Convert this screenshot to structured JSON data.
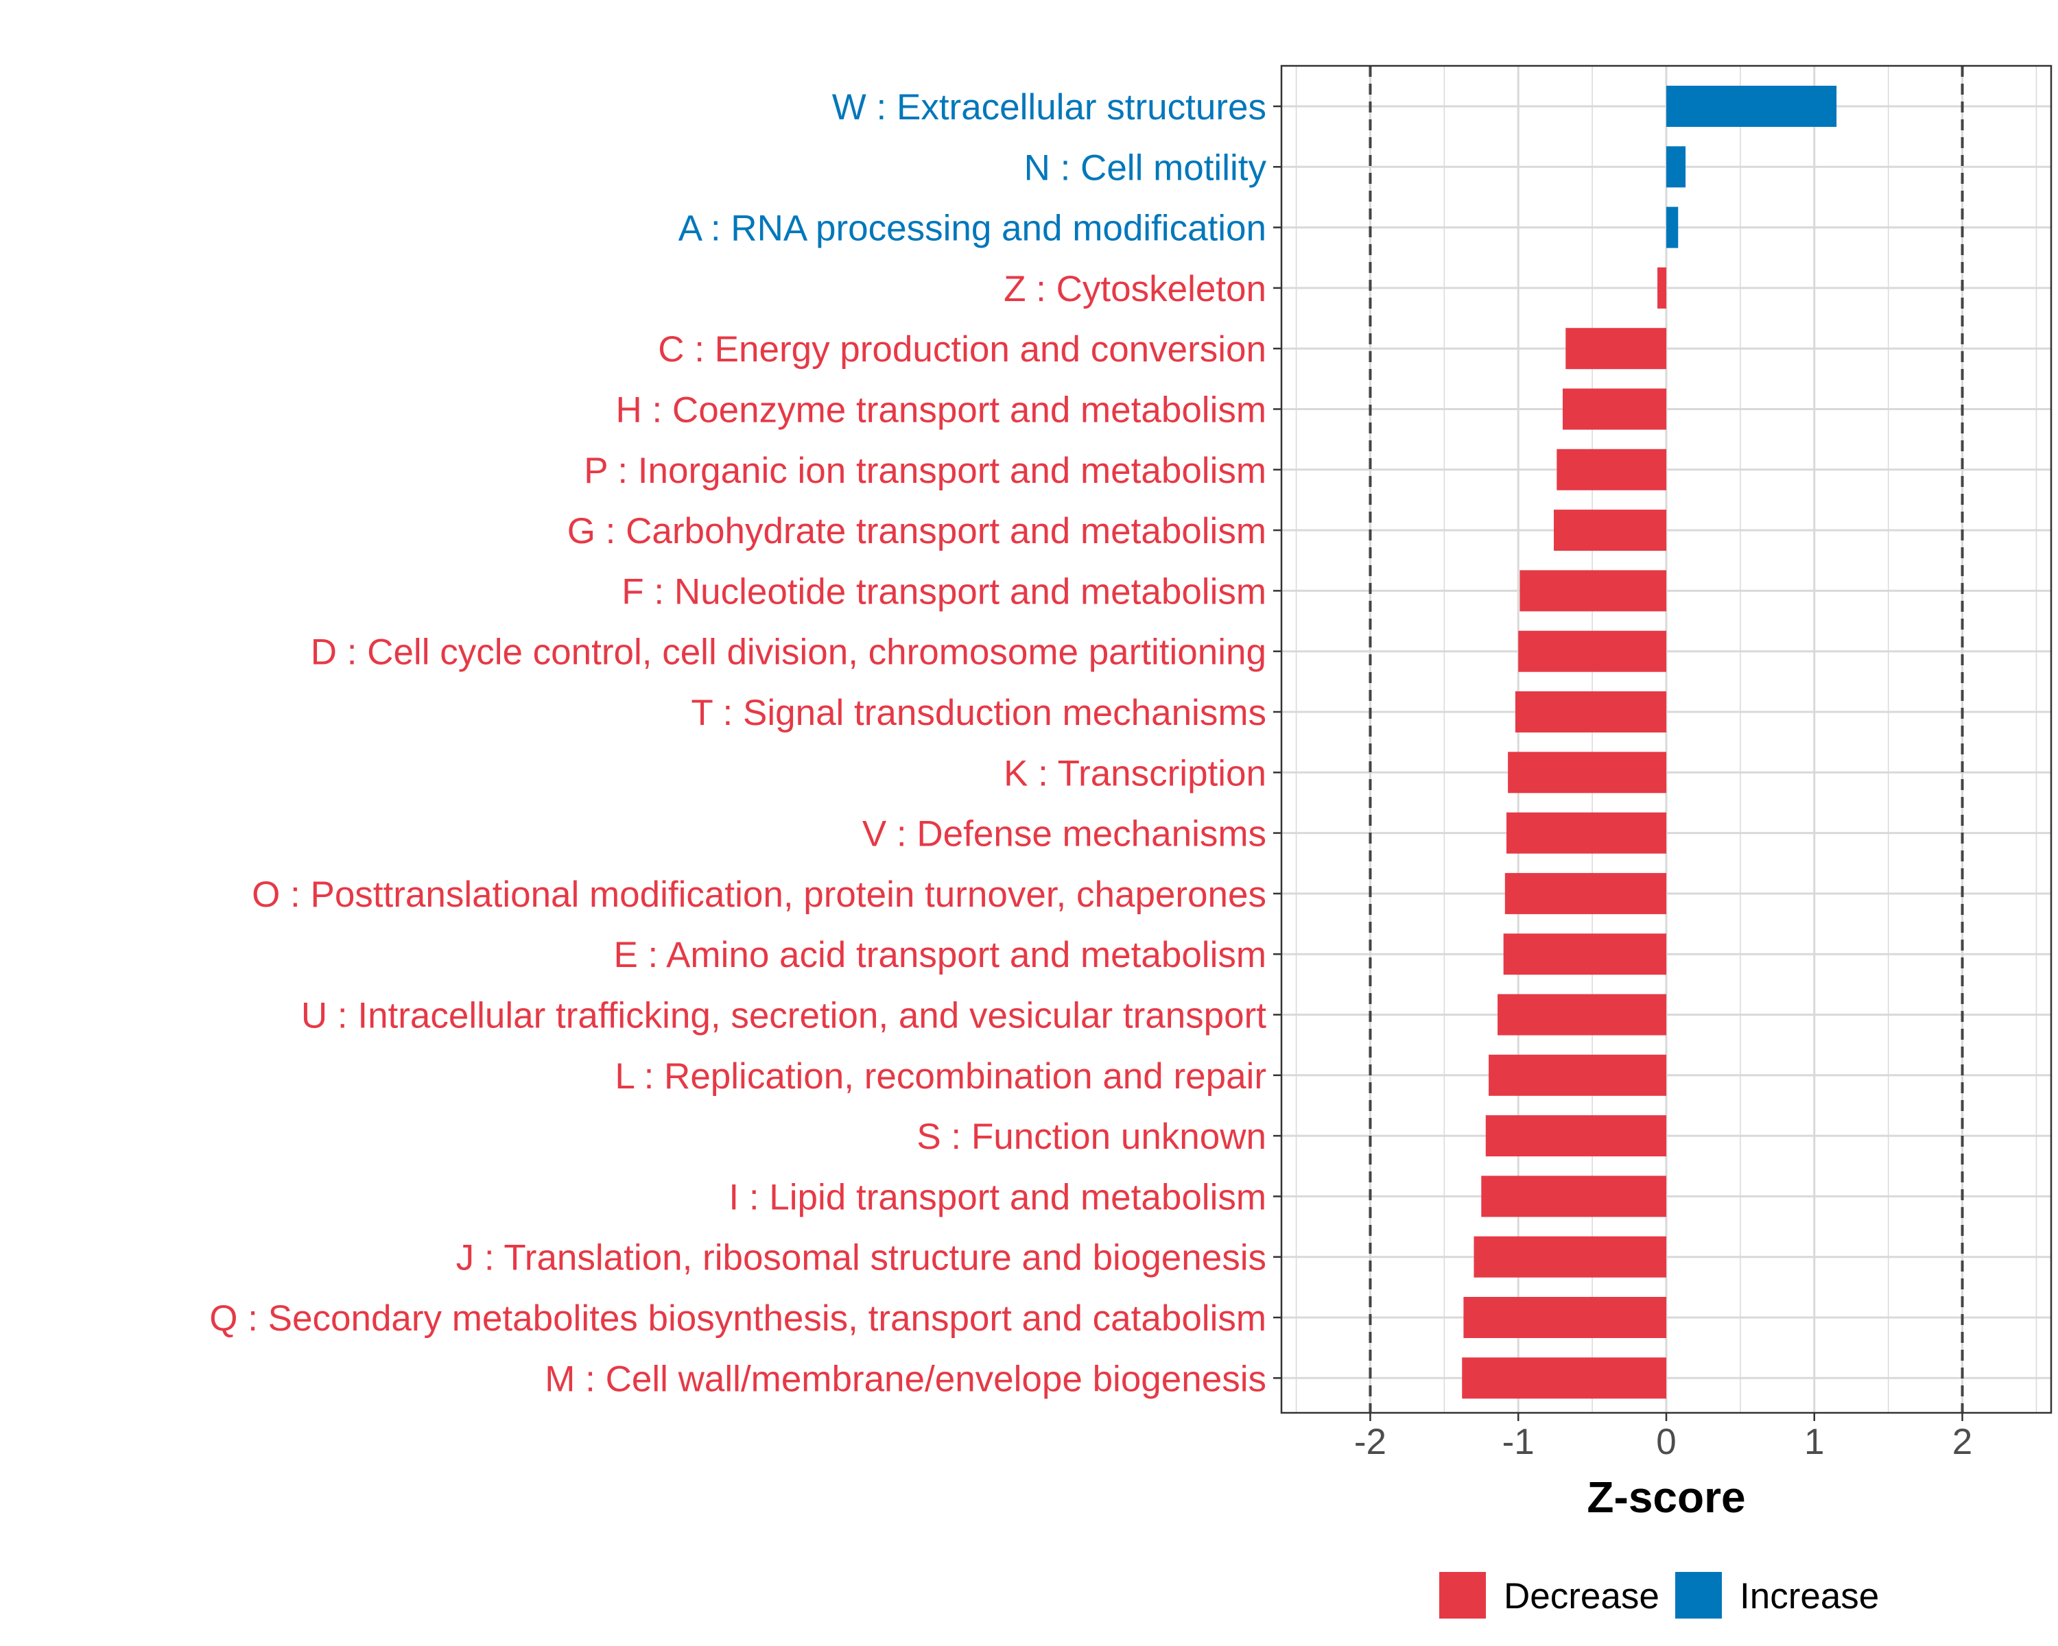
{
  "colors": {
    "decrease": "#e63946",
    "increase": "#0077bb",
    "grid": "#d9d9d9",
    "reference_line": "#444444",
    "panel_border": "#333333"
  },
  "chart_data": {
    "type": "bar",
    "orientation": "horizontal",
    "xlabel": "Z-score",
    "xlim": [
      -2.6,
      2.6
    ],
    "x_ticks": [
      -2,
      -1,
      0,
      1,
      2
    ],
    "x_tick_labels": [
      "-2",
      "-1",
      "0",
      "1",
      "2"
    ],
    "reference_lines": [
      -2,
      2
    ],
    "grid": true,
    "legend_position": "bottom",
    "legend": [
      {
        "label": "Decrease",
        "color_key": "decrease"
      },
      {
        "label": "Increase",
        "color_key": "increase"
      }
    ],
    "categories": [
      "W : Extracellular structures",
      "N : Cell motility",
      "A : RNA processing and modification",
      "Z : Cytoskeleton",
      "C : Energy production and conversion",
      "H : Coenzyme transport and metabolism",
      "P : Inorganic ion transport and metabolism",
      "G : Carbohydrate transport and metabolism",
      "F : Nucleotide transport and metabolism",
      "D : Cell cycle control, cell division, chromosome partitioning",
      "T : Signal transduction mechanisms",
      "K : Transcription",
      "V : Defense mechanisms",
      "O : Posttranslational modification, protein turnover, chaperones",
      "E : Amino acid transport and metabolism",
      "U : Intracellular trafficking, secretion, and vesicular transport",
      "L : Replication, recombination and repair",
      "S : Function unknown",
      "I : Lipid transport and metabolism",
      "J : Translation, ribosomal structure and biogenesis",
      "Q : Secondary metabolites biosynthesis, transport and catabolism",
      "M : Cell wall/membrane/envelope biogenesis"
    ],
    "values": [
      1.15,
      0.13,
      0.08,
      -0.06,
      -0.68,
      -0.7,
      -0.74,
      -0.76,
      -0.99,
      -1.0,
      -1.02,
      -1.07,
      -1.08,
      -1.09,
      -1.1,
      -1.14,
      -1.2,
      -1.22,
      -1.25,
      -1.3,
      -1.37,
      -1.38
    ],
    "direction": [
      "Increase",
      "Increase",
      "Increase",
      "Decrease",
      "Decrease",
      "Decrease",
      "Decrease",
      "Decrease",
      "Decrease",
      "Decrease",
      "Decrease",
      "Decrease",
      "Decrease",
      "Decrease",
      "Decrease",
      "Decrease",
      "Decrease",
      "Decrease",
      "Decrease",
      "Decrease",
      "Decrease",
      "Decrease"
    ]
  }
}
